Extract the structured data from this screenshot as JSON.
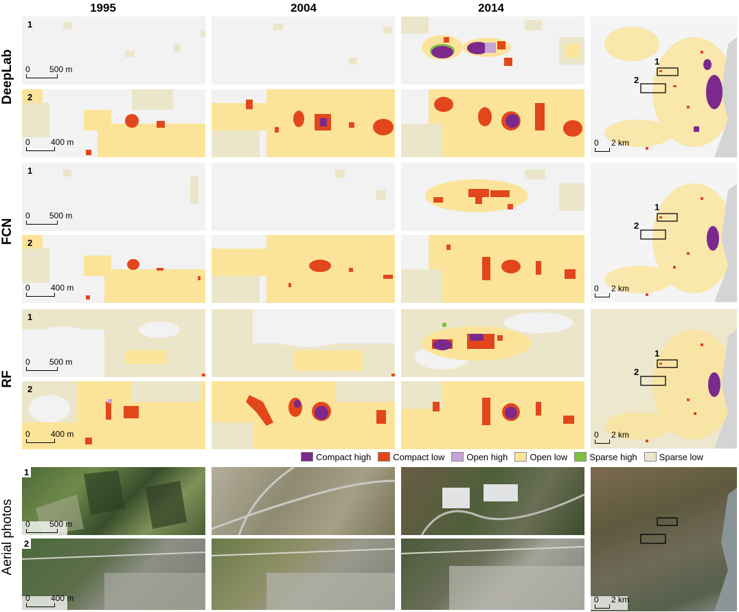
{
  "columns": [
    "1995",
    "2004",
    "2014"
  ],
  "rows": [
    "DeepLab",
    "FCN",
    "RF",
    "Aerial photos"
  ],
  "panel_numbers": [
    "1",
    "2"
  ],
  "scales": {
    "area1": {
      "zero": "0",
      "unit": "500 m"
    },
    "area2": {
      "zero": "0",
      "unit": "400 m"
    },
    "overview": {
      "zero": "0",
      "unit": "2 km"
    }
  },
  "legend": [
    {
      "label": "Compact high",
      "color": "#7b2a8c"
    },
    {
      "label": "Compact low",
      "color": "#e2471b"
    },
    {
      "label": "Open high",
      "color": "#c6a4d6"
    },
    {
      "label": "Open low",
      "color": "#fbe49a"
    },
    {
      "label": "Sparse high",
      "color": "#7fbf3f"
    },
    {
      "label": "Sparse low",
      "color": "#ebe6c9"
    }
  ],
  "colors": {
    "background": "#f2f2f2",
    "compact_high": "#7b2a8c",
    "compact_low": "#e2471b",
    "open_high": "#c6a4d6",
    "open_low": "#fbe49a",
    "sparse_high": "#7fbf3f",
    "sparse_low": "#ebe6c9",
    "sea": "#d4d4d4"
  }
}
